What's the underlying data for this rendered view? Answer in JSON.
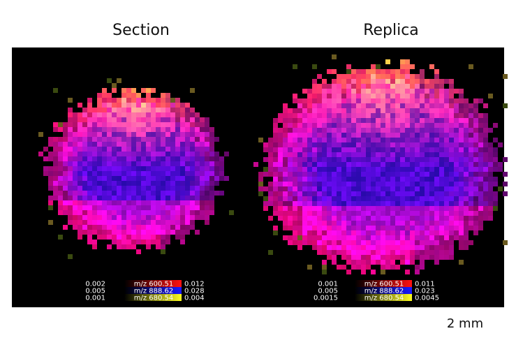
{
  "panels": [
    {
      "title": "Section",
      "colorbars": [
        {
          "min": "0.002",
          "label": "m/z 600.51",
          "max": "0.012"
        },
        {
          "min": "0.005",
          "label": "m/z 888.62",
          "max": "0.028"
        },
        {
          "min": "0.001",
          "label": "m/z 680.54",
          "max": "0.004"
        }
      ]
    },
    {
      "title": "Replica",
      "colorbars": [
        {
          "min": "0.001",
          "label": "m/z 600.51",
          "max": "0.011"
        },
        {
          "min": "0.005",
          "label": "m/z 888.62",
          "max": "0.023"
        },
        {
          "min": "0.0015",
          "label": "m/z 680.54",
          "max": "0.0045"
        }
      ]
    }
  ],
  "scale_bar": "2 mm"
}
